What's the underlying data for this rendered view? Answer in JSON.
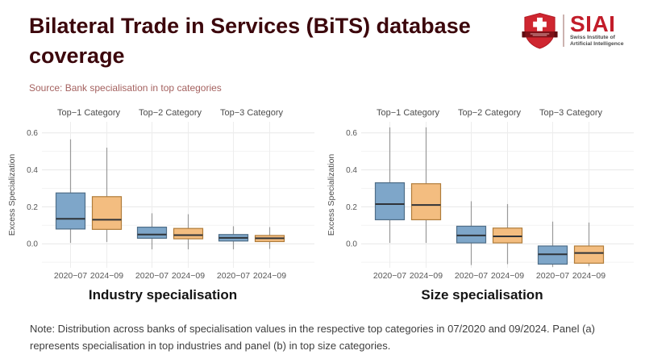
{
  "page": {
    "title": "Bilateral Trade in Services (BiTS) database coverage",
    "source": "Source: Bank specialisation in top categories",
    "note": "Note: Distribution across banks of specialisation values in the respective top categories in 07/2020 and 09/2024. Panel (a) represents specialisation in top industries and panel (b) in top size categories."
  },
  "logo": {
    "acronym": "SIAI",
    "org_line1": "Swiss Institute of",
    "org_line2": "Artificial Intelligence",
    "accent_red": "#c21d2a",
    "shield_red": "#cf2630",
    "band_dark_red": "#7e1118"
  },
  "colors": {
    "title_maroon": "#3c070c",
    "box_blue_fill": "#7ea6c9",
    "box_blue_stroke": "#4f6e88",
    "box_orange_fill": "#f3bd80",
    "box_orange_stroke": "#b07c3a",
    "median": "#2f3338",
    "whisker": "#999999",
    "grid_major": "#e7e7e7",
    "grid_minor": "#f3f3f3"
  },
  "chart_data": [
    {
      "type": "boxplot",
      "caption": "Industry specialisation",
      "ylabel": "Excess Specialization",
      "facets": [
        "Top−1 Category",
        "Top−2 Category",
        "Top−3 Category"
      ],
      "x_tick_note": "each facet shows 2020−07 (blue) and 2024−09 (orange)",
      "y_ticks": [
        0.0,
        0.2,
        0.4,
        0.6
      ],
      "grid_minor": [
        -0.1,
        0.1,
        0.3,
        0.5
      ],
      "ylim": [
        -0.13,
        0.66
      ],
      "legend": "none",
      "series": [
        {
          "name": "2020−07",
          "fill": "#7ea6c9",
          "stroke": "#4f6e88",
          "boxes": [
            {
              "whisker_low": 0.005,
              "q1": 0.08,
              "median": 0.135,
              "q3": 0.275,
              "whisker_high": 0.565
            },
            {
              "whisker_low": -0.03,
              "q1": 0.03,
              "median": 0.05,
              "q3": 0.09,
              "whisker_high": 0.165
            },
            {
              "whisker_low": -0.03,
              "q1": 0.015,
              "median": 0.032,
              "q3": 0.05,
              "whisker_high": 0.095
            }
          ]
        },
        {
          "name": "2024−09",
          "fill": "#f3bd80",
          "stroke": "#b07c3a",
          "boxes": [
            {
              "whisker_low": 0.01,
              "q1": 0.078,
              "median": 0.13,
              "q3": 0.255,
              "whisker_high": 0.52
            },
            {
              "whisker_low": -0.03,
              "q1": 0.027,
              "median": 0.047,
              "q3": 0.083,
              "whisker_high": 0.16
            },
            {
              "whisker_low": -0.028,
              "q1": 0.012,
              "median": 0.03,
              "q3": 0.045,
              "whisker_high": 0.09
            }
          ]
        }
      ]
    },
    {
      "type": "boxplot",
      "caption": "Size specialisation",
      "ylabel": "Excess Specialization",
      "facets": [
        "Top−1 Category",
        "Top−2 Category",
        "Top−3 Category"
      ],
      "x_tick_note": "each facet shows 2020−07 (blue) and 2024−09 (orange)",
      "y_ticks": [
        0.0,
        0.2,
        0.4,
        0.6
      ],
      "grid_minor": [
        -0.1,
        0.1,
        0.3,
        0.5
      ],
      "ylim": [
        -0.13,
        0.66
      ],
      "legend": "none",
      "series": [
        {
          "name": "2020−07",
          "fill": "#7ea6c9",
          "stroke": "#4f6e88",
          "boxes": [
            {
              "whisker_low": 0.005,
              "q1": 0.13,
              "median": 0.215,
              "q3": 0.33,
              "whisker_high": 0.63
            },
            {
              "whisker_low": -0.115,
              "q1": 0.005,
              "median": 0.045,
              "q3": 0.095,
              "whisker_high": 0.23
            },
            {
              "whisker_low": -0.125,
              "q1": -0.11,
              "median": -0.057,
              "q3": -0.012,
              "whisker_high": 0.12
            }
          ]
        },
        {
          "name": "2024−09",
          "fill": "#f3bd80",
          "stroke": "#b07c3a",
          "boxes": [
            {
              "whisker_low": 0.005,
              "q1": 0.13,
              "median": 0.21,
              "q3": 0.325,
              "whisker_high": 0.63
            },
            {
              "whisker_low": -0.11,
              "q1": 0.005,
              "median": 0.04,
              "q3": 0.085,
              "whisker_high": 0.215
            },
            {
              "whisker_low": -0.12,
              "q1": -0.105,
              "median": -0.05,
              "q3": -0.012,
              "whisker_high": 0.115
            }
          ]
        }
      ]
    }
  ]
}
